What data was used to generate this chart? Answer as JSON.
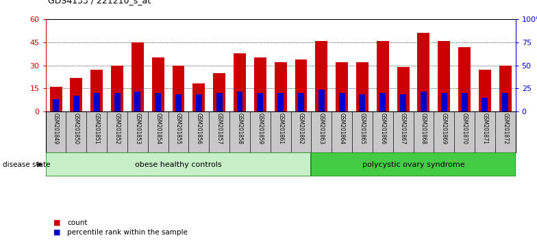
{
  "title": "GDS4133 / 221210_s_at",
  "samples": [
    "GSM201849",
    "GSM201850",
    "GSM201851",
    "GSM201852",
    "GSM201853",
    "GSM201854",
    "GSM201855",
    "GSM201856",
    "GSM201857",
    "GSM201858",
    "GSM201859",
    "GSM201861",
    "GSM201862",
    "GSM201863",
    "GSM201864",
    "GSM201865",
    "GSM201866",
    "GSM201867",
    "GSM201868",
    "GSM201869",
    "GSM201870",
    "GSM201871",
    "GSM201872"
  ],
  "counts": [
    16,
    22,
    27,
    30,
    45,
    35,
    30,
    18,
    25,
    38,
    35,
    32,
    34,
    46,
    32,
    32,
    46,
    29,
    51,
    46,
    42,
    27,
    30
  ],
  "percentiles": [
    8,
    10,
    12,
    12,
    13,
    12,
    11,
    11,
    12,
    13,
    12,
    12,
    12,
    14,
    12,
    11,
    12,
    11,
    13,
    12,
    12,
    9,
    12
  ],
  "grp1_count": 13,
  "grp2_count": 10,
  "group_labels": [
    "obese healthy controls",
    "polycystic ovary syndrome"
  ],
  "group_colors": [
    "#c8f0c8",
    "#44cc44"
  ],
  "group_edge_color": "#228B22",
  "bar_color": "#CC0000",
  "percentile_color": "#0000CC",
  "bg_color": "#FFFFFF",
  "tick_area_color": "#C8C8C8",
  "ylim_left": [
    0,
    60
  ],
  "ylim_right": [
    0,
    100
  ],
  "yticks_left": [
    0,
    15,
    30,
    45,
    60
  ],
  "yticks_right": [
    0,
    25,
    50,
    75,
    100
  ],
  "ytick_labels_right": [
    "0",
    "25",
    "50",
    "75",
    "100%"
  ],
  "disease_state_label": "disease state",
  "legend_count": "count",
  "legend_percentile": "percentile rank within the sample",
  "left_axis_color": "#CC0000",
  "right_axis_color": "#0000CC"
}
